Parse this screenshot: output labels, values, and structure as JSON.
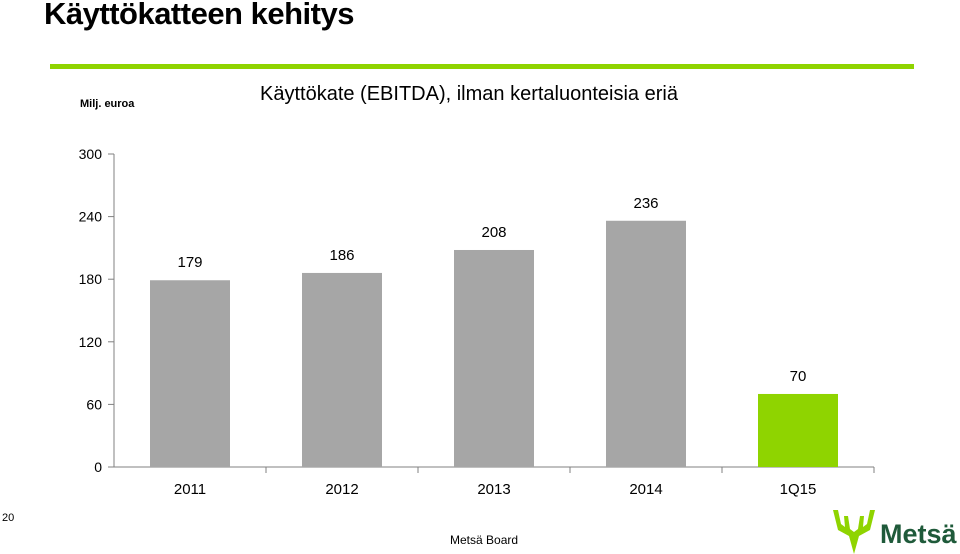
{
  "slide": {
    "title": "Käyttökatteen kehitys",
    "page_number": "20",
    "footer": "Metsä Board",
    "logo_text": "Metsä"
  },
  "colors": {
    "accent": "#8fd400",
    "bar_default": "#a6a6a6",
    "bar_highlight": "#8fd400",
    "axis": "#808080"
  },
  "chart_data": {
    "type": "bar",
    "title": "Käyttökate (EBITDA), ilman kertaluonteisia eriä",
    "unit_label": "Milj. euroa",
    "categories": [
      "2011",
      "2012",
      "2013",
      "2014",
      "1Q15"
    ],
    "values": [
      179,
      186,
      208,
      236,
      70
    ],
    "data_labels": [
      "179",
      "186",
      "208",
      "236",
      "70"
    ],
    "highlight": [
      false,
      false,
      false,
      false,
      true
    ],
    "yticks": [
      0,
      60,
      120,
      180,
      240,
      300
    ],
    "ylim": [
      0,
      300
    ],
    "grid": false,
    "legend": "none"
  }
}
